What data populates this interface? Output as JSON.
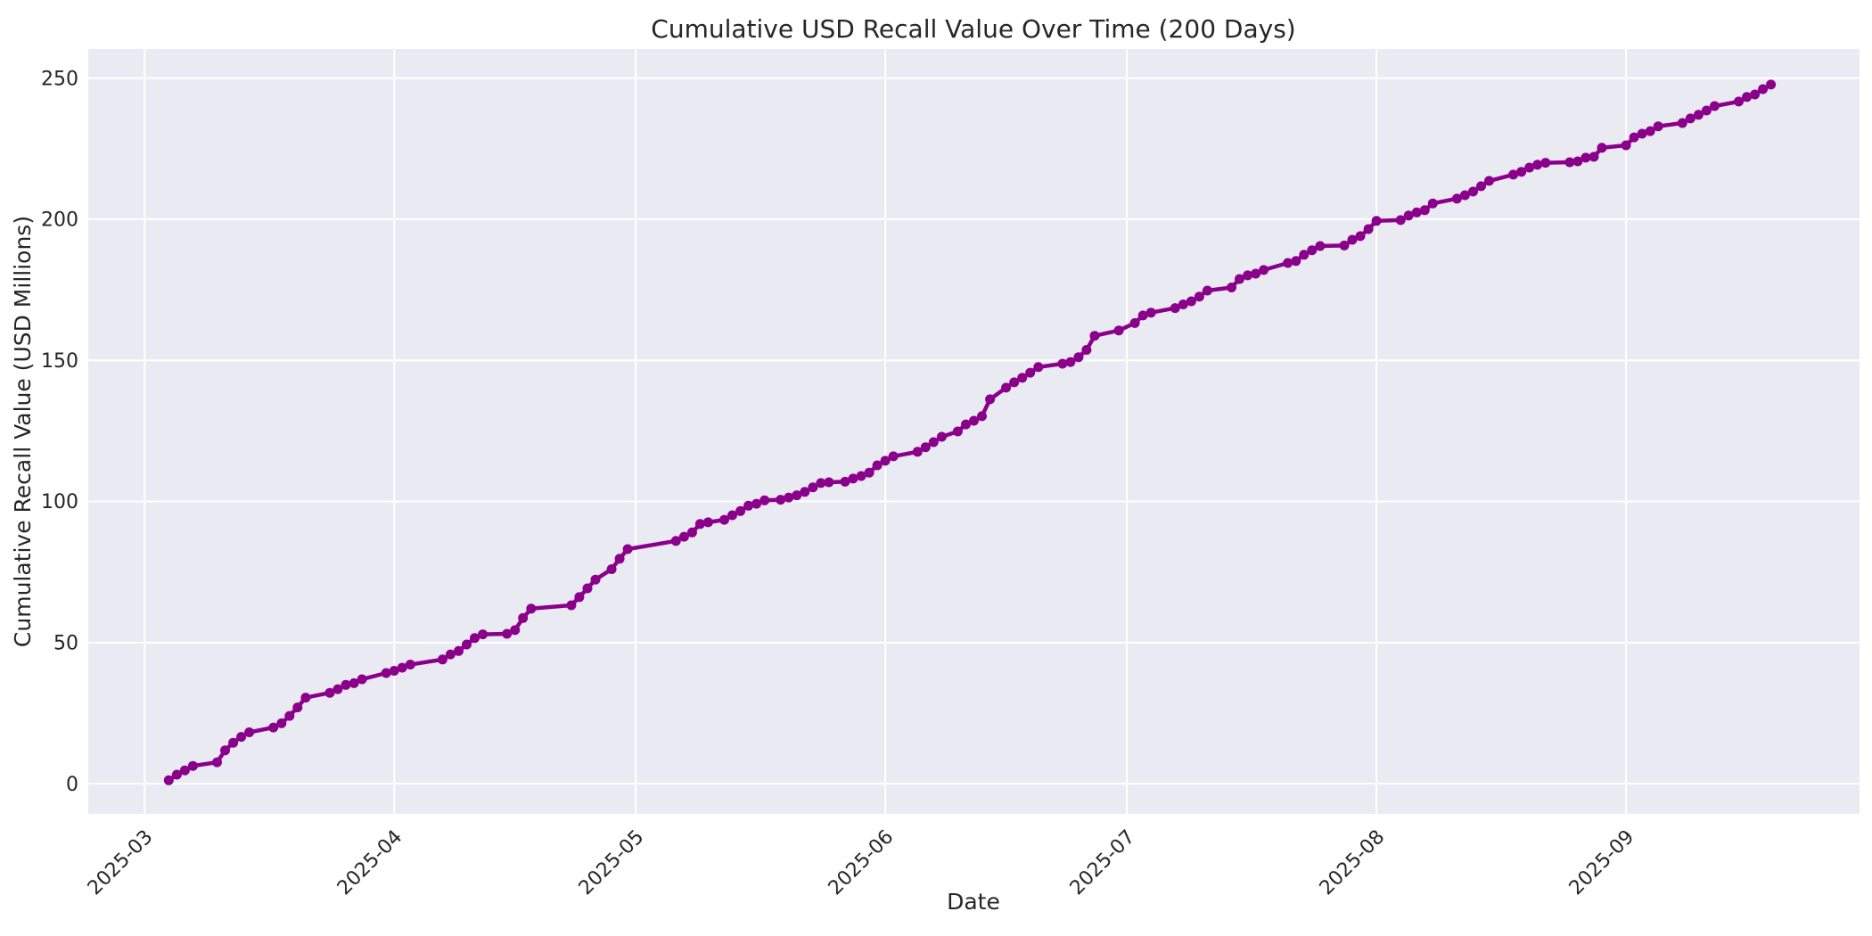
{
  "figure": {
    "title": "Cumulative USD Recall Value Over Time (200 Days)",
    "window_note": "200 Days"
  },
  "chart_data": {
    "type": "line",
    "title": "Cumulative USD Recall Value Over Time (200 Days)",
    "xlabel": "Date",
    "ylabel": "Cumulative Recall Value (USD Millions)",
    "legend_position": "none",
    "grid": true,
    "x_tick_rotation_deg": 45,
    "xlim": [
      "2025-02-22",
      "2025-09-30"
    ],
    "ylim": [
      -10.7,
      260.3
    ],
    "y_ticks": [
      0,
      50,
      100,
      150,
      200,
      250
    ],
    "x_ticks": [
      {
        "date": "2025-03-01",
        "label": "2025-03"
      },
      {
        "date": "2025-04-01",
        "label": "2025-04"
      },
      {
        "date": "2025-05-01",
        "label": "2025-05"
      },
      {
        "date": "2025-06-01",
        "label": "2025-06"
      },
      {
        "date": "2025-07-01",
        "label": "2025-07"
      },
      {
        "date": "2025-08-01",
        "label": "2025-08"
      },
      {
        "date": "2025-09-01",
        "label": "2025-09"
      }
    ],
    "styles": {
      "figure_bg": "#ffffff",
      "plot_bg": "#eaeaf2",
      "grid_color": "#ffffff",
      "text_color": "#262626",
      "line_color": "#8b008b",
      "marker": "circle",
      "marker_radius": 5.5,
      "line_width": 4.5
    },
    "series": [
      {
        "name": "Cumulative USD recall value (USD Millions)",
        "color": "#8b008b",
        "points": [
          [
            "2025-03-04",
            1.2
          ],
          [
            "2025-03-05",
            3.2
          ],
          [
            "2025-03-06",
            4.7
          ],
          [
            "2025-03-07",
            6.3
          ],
          [
            "2025-03-10",
            7.6
          ],
          [
            "2025-03-11",
            11.8
          ],
          [
            "2025-03-12",
            14.5
          ],
          [
            "2025-03-13",
            16.6
          ],
          [
            "2025-03-14",
            18.2
          ],
          [
            "2025-03-17",
            19.9
          ],
          [
            "2025-03-18",
            21.4
          ],
          [
            "2025-03-19",
            24.0
          ],
          [
            "2025-03-20",
            27.0
          ],
          [
            "2025-03-21",
            30.5
          ],
          [
            "2025-03-24",
            32.2
          ],
          [
            "2025-03-25",
            33.5
          ],
          [
            "2025-03-26",
            35.0
          ],
          [
            "2025-03-27",
            35.6
          ],
          [
            "2025-03-28",
            37.0
          ],
          [
            "2025-03-31",
            39.2
          ],
          [
            "2025-04-01",
            40.0
          ],
          [
            "2025-04-02",
            41.1
          ],
          [
            "2025-04-03",
            42.2
          ],
          [
            "2025-04-07",
            44.0
          ],
          [
            "2025-04-08",
            45.8
          ],
          [
            "2025-04-09",
            47.0
          ],
          [
            "2025-04-10",
            49.3
          ],
          [
            "2025-04-11",
            51.6
          ],
          [
            "2025-04-12",
            52.9
          ],
          [
            "2025-04-15",
            53.1
          ],
          [
            "2025-04-16",
            54.4
          ],
          [
            "2025-04-17",
            58.7
          ],
          [
            "2025-04-18",
            62.0
          ],
          [
            "2025-04-23",
            63.2
          ],
          [
            "2025-04-24",
            66.1
          ],
          [
            "2025-04-25",
            69.2
          ],
          [
            "2025-04-26",
            72.3
          ],
          [
            "2025-04-28",
            76.0
          ],
          [
            "2025-04-29",
            79.7
          ],
          [
            "2025-04-30",
            83.1
          ],
          [
            "2025-05-06",
            86.0
          ],
          [
            "2025-05-07",
            87.5
          ],
          [
            "2025-05-08",
            89.0
          ],
          [
            "2025-05-09",
            92.0
          ],
          [
            "2025-05-10",
            92.6
          ],
          [
            "2025-05-12",
            93.5
          ],
          [
            "2025-05-13",
            95.1
          ],
          [
            "2025-05-14",
            96.6
          ],
          [
            "2025-05-15",
            98.5
          ],
          [
            "2025-05-16",
            99.2
          ],
          [
            "2025-05-17",
            100.4
          ],
          [
            "2025-05-19",
            100.6
          ],
          [
            "2025-05-20",
            101.4
          ],
          [
            "2025-05-21",
            102.2
          ],
          [
            "2025-05-22",
            103.4
          ],
          [
            "2025-05-23",
            105.0
          ],
          [
            "2025-05-24",
            106.5
          ],
          [
            "2025-05-25",
            106.8
          ],
          [
            "2025-05-27",
            107.0
          ],
          [
            "2025-05-28",
            108.1
          ],
          [
            "2025-05-29",
            109.0
          ],
          [
            "2025-05-30",
            110.2
          ],
          [
            "2025-05-31",
            112.8
          ],
          [
            "2025-06-01",
            114.4
          ],
          [
            "2025-06-02",
            116.0
          ],
          [
            "2025-06-05",
            117.6
          ],
          [
            "2025-06-06",
            119.2
          ],
          [
            "2025-06-07",
            121.0
          ],
          [
            "2025-06-08",
            122.9
          ],
          [
            "2025-06-10",
            124.8
          ],
          [
            "2025-06-11",
            127.3
          ],
          [
            "2025-06-12",
            128.6
          ],
          [
            "2025-06-13",
            130.2
          ],
          [
            "2025-06-14",
            136.2
          ],
          [
            "2025-06-16",
            140.3
          ],
          [
            "2025-06-17",
            142.2
          ],
          [
            "2025-06-18",
            143.8
          ],
          [
            "2025-06-19",
            145.6
          ],
          [
            "2025-06-20",
            147.6
          ],
          [
            "2025-06-23",
            148.8
          ],
          [
            "2025-06-24",
            149.4
          ],
          [
            "2025-06-25",
            151.1
          ],
          [
            "2025-06-26",
            153.7
          ],
          [
            "2025-06-27",
            158.7
          ],
          [
            "2025-06-30",
            160.6
          ],
          [
            "2025-07-02",
            163.2
          ],
          [
            "2025-07-03",
            165.9
          ],
          [
            "2025-07-04",
            166.9
          ],
          [
            "2025-07-07",
            168.5
          ],
          [
            "2025-07-08",
            169.8
          ],
          [
            "2025-07-09",
            170.9
          ],
          [
            "2025-07-10",
            172.6
          ],
          [
            "2025-07-11",
            174.7
          ],
          [
            "2025-07-14",
            175.8
          ],
          [
            "2025-07-15",
            178.8
          ],
          [
            "2025-07-16",
            180.1
          ],
          [
            "2025-07-17",
            180.7
          ],
          [
            "2025-07-18",
            182.0
          ],
          [
            "2025-07-21",
            184.5
          ],
          [
            "2025-07-22",
            185.2
          ],
          [
            "2025-07-23",
            187.4
          ],
          [
            "2025-07-24",
            189.0
          ],
          [
            "2025-07-25",
            190.5
          ],
          [
            "2025-07-28",
            190.7
          ],
          [
            "2025-07-29",
            192.7
          ],
          [
            "2025-07-30",
            194.0
          ],
          [
            "2025-07-31",
            196.5
          ],
          [
            "2025-08-01",
            199.4
          ],
          [
            "2025-08-04",
            199.7
          ],
          [
            "2025-08-05",
            201.3
          ],
          [
            "2025-08-06",
            202.4
          ],
          [
            "2025-08-07",
            203.2
          ],
          [
            "2025-08-08",
            205.6
          ],
          [
            "2025-08-11",
            207.3
          ],
          [
            "2025-08-12",
            208.5
          ],
          [
            "2025-08-13",
            209.8
          ],
          [
            "2025-08-14",
            211.7
          ],
          [
            "2025-08-15",
            213.6
          ],
          [
            "2025-08-18",
            215.8
          ],
          [
            "2025-08-19",
            216.8
          ],
          [
            "2025-08-20",
            218.3
          ],
          [
            "2025-08-21",
            219.3
          ],
          [
            "2025-08-22",
            220.0
          ],
          [
            "2025-08-25",
            220.2
          ],
          [
            "2025-08-26",
            220.5
          ],
          [
            "2025-08-27",
            221.8
          ],
          [
            "2025-08-28",
            222.1
          ],
          [
            "2025-08-29",
            225.3
          ],
          [
            "2025-09-01",
            226.2
          ],
          [
            "2025-09-02",
            229.0
          ],
          [
            "2025-09-03",
            230.3
          ],
          [
            "2025-09-04",
            231.2
          ],
          [
            "2025-09-05",
            232.9
          ],
          [
            "2025-09-08",
            234.1
          ],
          [
            "2025-09-09",
            235.7
          ],
          [
            "2025-09-10",
            237.0
          ],
          [
            "2025-09-11",
            238.5
          ],
          [
            "2025-09-12",
            240.1
          ],
          [
            "2025-09-15",
            241.7
          ],
          [
            "2025-09-16",
            243.3
          ],
          [
            "2025-09-17",
            244.2
          ],
          [
            "2025-09-18",
            246.1
          ],
          [
            "2025-09-19",
            247.7
          ]
        ]
      }
    ]
  }
}
